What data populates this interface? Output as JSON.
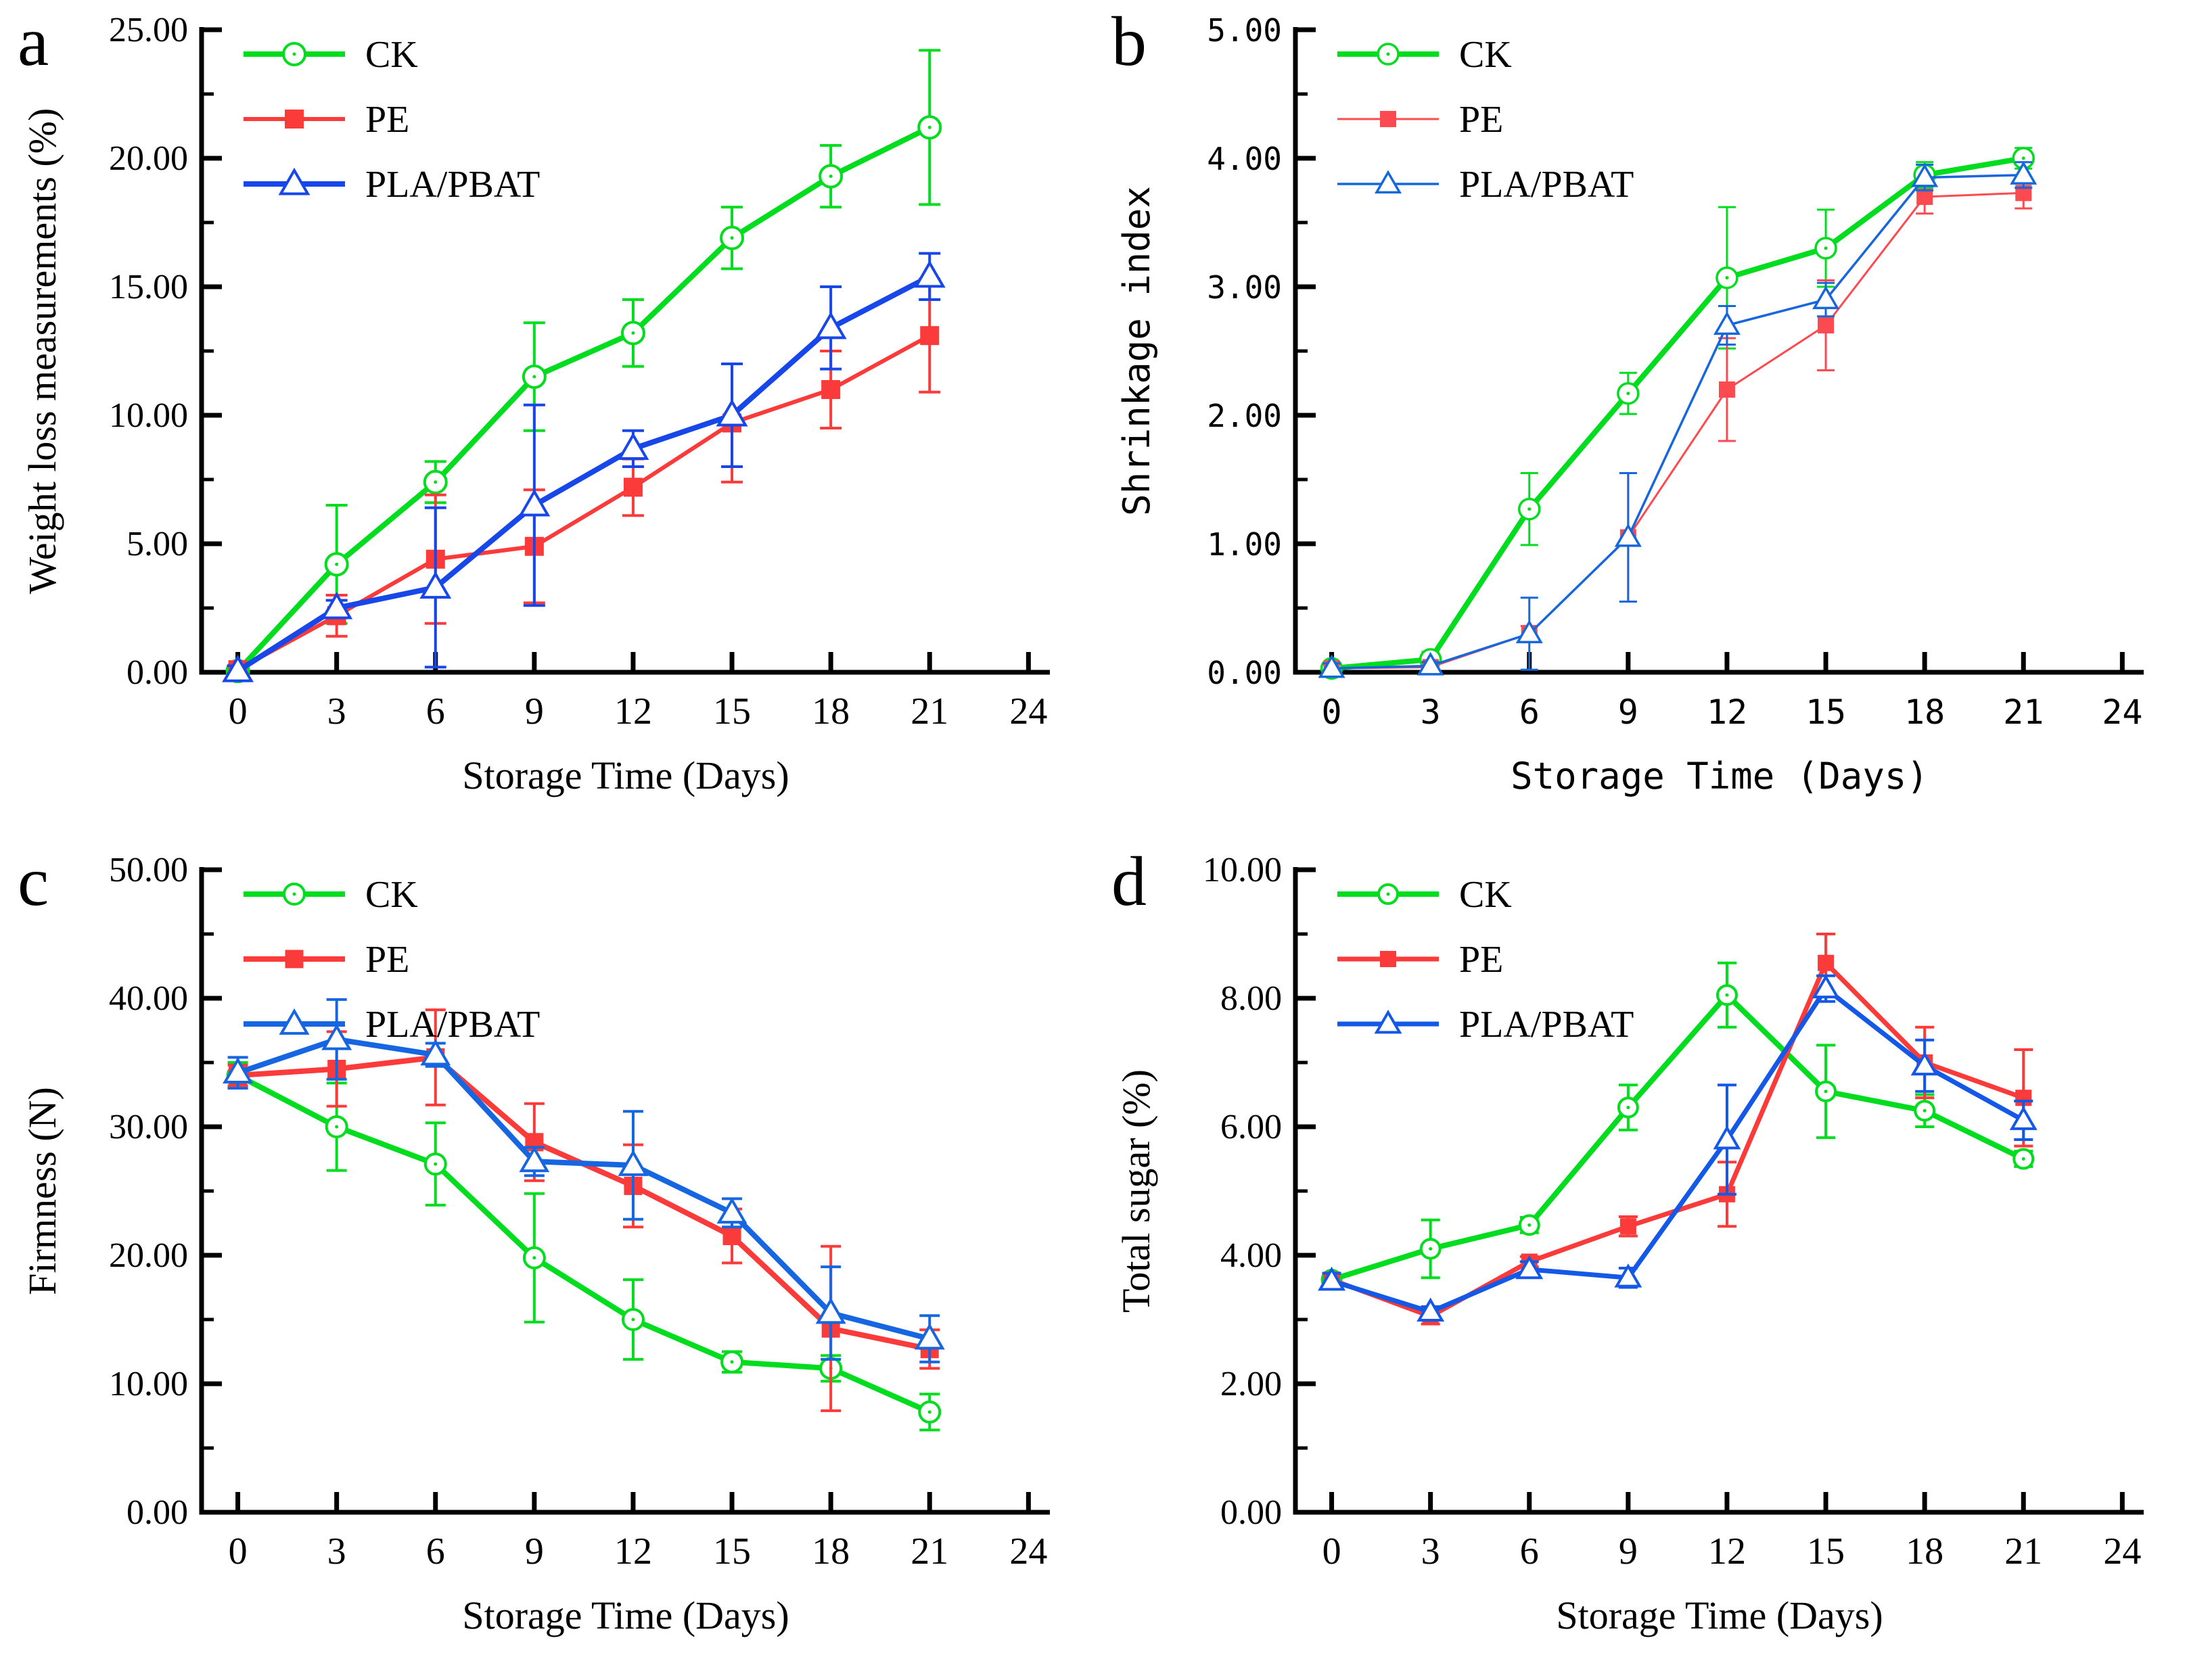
{
  "figure": {
    "background": "#ffffff",
    "legend_labels": [
      "CK",
      "PE",
      "PLA/PBAT"
    ],
    "series_colors": {
      "ck_green": "#00DC1E",
      "pe_red": "#FB3A3A",
      "pla_blue": "#1747E8"
    }
  },
  "chart_data": [
    {
      "panel_label": "a",
      "type": "line",
      "title": "",
      "xlabel": "Storage Time (Days)",
      "ylabel": "Weight loss measurements (%)",
      "font": "serif",
      "x": [
        0,
        3,
        6,
        9,
        12,
        15,
        18,
        21
      ],
      "xticks": [
        0,
        3,
        6,
        9,
        12,
        15,
        18,
        21,
        24
      ],
      "xlim": [
        -1.1,
        24.65
      ],
      "ylim": [
        0,
        25
      ],
      "yticks": [
        0,
        5,
        10,
        15,
        20,
        25
      ],
      "grid": false,
      "legend_position": "top-left",
      "err_width": 4,
      "err_cap": 16,
      "marker_stroke": 4,
      "series": [
        {
          "name": "CK",
          "color": "#00DC1E",
          "marker": "circle-open",
          "marker_size": 16,
          "line_width": 8,
          "values": [
            0.05,
            4.2,
            7.4,
            11.5,
            13.2,
            16.9,
            19.3,
            21.2
          ],
          "errors": [
            0.1,
            2.3,
            0.8,
            2.1,
            1.3,
            1.2,
            1.2,
            3.0
          ]
        },
        {
          "name": "PE",
          "color": "#FB3A3A",
          "marker": "square-filled",
          "marker_size": 28,
          "line_width": 6,
          "values": [
            0.1,
            2.2,
            4.4,
            4.9,
            7.2,
            9.7,
            11.0,
            13.1
          ],
          "errors": [
            0.15,
            0.8,
            2.5,
            2.2,
            1.1,
            2.3,
            1.5,
            2.2
          ]
        },
        {
          "name": "PLA/PBAT",
          "color": "#1747E8",
          "marker": "triangle-open",
          "marker_size": 40,
          "line_width": 8,
          "values": [
            0.05,
            2.5,
            3.3,
            6.5,
            8.7,
            10.0,
            13.4,
            15.4
          ],
          "errors": [
            0.2,
            0.3,
            3.1,
            3.9,
            0.7,
            2.0,
            1.6,
            0.9
          ]
        }
      ]
    },
    {
      "panel_label": "b",
      "type": "line",
      "title": "",
      "xlabel": "Storage Time (Days)",
      "ylabel": "Shrinkage index",
      "font": "mono",
      "x": [
        0,
        3,
        6,
        9,
        12,
        15,
        18,
        21
      ],
      "xticks": [
        0,
        3,
        6,
        9,
        12,
        15,
        18,
        21,
        24
      ],
      "xlim": [
        -1.1,
        24.65
      ],
      "ylim": [
        0,
        5
      ],
      "yticks": [
        0,
        1,
        2,
        3,
        4,
        5
      ],
      "grid": false,
      "legend_position": "top-left",
      "err_width": 3,
      "err_cap": 13,
      "marker_stroke": 3.5,
      "series": [
        {
          "name": "CK",
          "color": "#00DC1E",
          "marker": "circle-open",
          "marker_size": 15,
          "line_width": 8,
          "values": [
            0.03,
            0.1,
            1.27,
            2.17,
            3.07,
            3.3,
            3.87,
            4.0
          ],
          "errors": [
            0.03,
            0.06,
            0.28,
            0.16,
            0.55,
            0.3,
            0.1,
            0.08
          ]
        },
        {
          "name": "PE",
          "color": "#FB4A50",
          "marker": "square-filled",
          "marker_size": 24,
          "line_width": 3,
          "values": [
            0.03,
            0.04,
            0.3,
            1.05,
            2.2,
            2.7,
            3.7,
            3.73
          ],
          "errors": [
            0.03,
            0.03,
            0.06,
            0.5,
            0.4,
            0.35,
            0.13,
            0.12
          ]
        },
        {
          "name": "PLA/PBAT",
          "color": "#1767DC",
          "marker": "triangle-open",
          "marker_size": 34,
          "line_width": 3.5,
          "values": [
            0.03,
            0.05,
            0.3,
            1.05,
            2.7,
            2.9,
            3.85,
            3.87
          ],
          "errors": [
            0.04,
            0.03,
            0.28,
            0.5,
            0.15,
            0.13,
            0.1,
            0.1
          ]
        }
      ]
    },
    {
      "panel_label": "c",
      "type": "line",
      "title": "",
      "xlabel": "Storage Time (Days)",
      "ylabel": "Firmness (N)",
      "font": "serif",
      "x": [
        0,
        3,
        6,
        9,
        12,
        15,
        18,
        21
      ],
      "xticks": [
        0,
        3,
        6,
        9,
        12,
        15,
        18,
        21,
        24
      ],
      "xlim": [
        -1.1,
        24.65
      ],
      "ylim": [
        0,
        50
      ],
      "yticks": [
        0,
        10,
        20,
        30,
        40,
        50
      ],
      "grid": false,
      "legend_position": "top-left",
      "err_width": 4,
      "err_cap": 15,
      "marker_stroke": 4,
      "series": [
        {
          "name": "CK",
          "color": "#00DC1E",
          "marker": "circle-open",
          "marker_size": 15,
          "line_width": 8,
          "values": [
            34.0,
            30.0,
            27.1,
            19.8,
            15.0,
            11.7,
            11.2,
            7.8
          ],
          "errors": [
            1.0,
            3.4,
            3.2,
            5.0,
            3.1,
            0.8,
            1.0,
            1.4
          ]
        },
        {
          "name": "PE",
          "color": "#FB3A3A",
          "marker": "square-filled",
          "marker_size": 27,
          "line_width": 8,
          "values": [
            34.0,
            34.5,
            35.4,
            28.8,
            25.4,
            21.5,
            14.3,
            12.7
          ],
          "errors": [
            0.8,
            2.9,
            3.7,
            3.0,
            3.2,
            2.1,
            6.4,
            1.5
          ]
        },
        {
          "name": "PLA/PBAT",
          "color": "#1566E0",
          "marker": "triangle-open",
          "marker_size": 38,
          "line_width": 8,
          "values": [
            34.2,
            36.8,
            35.6,
            27.3,
            27.0,
            23.3,
            15.5,
            13.5
          ],
          "errors": [
            1.2,
            3.1,
            0.9,
            1.1,
            4.2,
            1.1,
            3.6,
            1.8
          ]
        }
      ]
    },
    {
      "panel_label": "d",
      "type": "line",
      "title": "",
      "xlabel": "Storage Time (Days)",
      "ylabel": "Total sugar (%)",
      "font": "serif",
      "x": [
        0,
        3,
        6,
        9,
        12,
        15,
        18,
        21
      ],
      "xticks": [
        0,
        3,
        6,
        9,
        12,
        15,
        18,
        21,
        24
      ],
      "xlim": [
        -1.1,
        24.65
      ],
      "ylim": [
        0,
        10
      ],
      "yticks": [
        0,
        2,
        4,
        6,
        8,
        10
      ],
      "grid": false,
      "legend_position": "top-left",
      "err_width": 4,
      "err_cap": 14,
      "marker_stroke": 4,
      "series": [
        {
          "name": "CK",
          "color": "#00DC1E",
          "marker": "circle-open",
          "marker_size": 14,
          "line_width": 8,
          "values": [
            3.62,
            4.1,
            4.47,
            6.3,
            8.05,
            6.55,
            6.25,
            5.5
          ],
          "errors": [
            0.08,
            0.45,
            0.12,
            0.35,
            0.5,
            0.72,
            0.25,
            0.12
          ]
        },
        {
          "name": "PE",
          "color": "#FB3A3A",
          "marker": "square-filled",
          "marker_size": 24,
          "line_width": 7,
          "values": [
            3.62,
            3.05,
            3.9,
            4.45,
            4.95,
            8.55,
            7.0,
            6.45
          ],
          "errors": [
            0.1,
            0.12,
            0.08,
            0.15,
            0.5,
            0.45,
            0.55,
            0.75
          ]
        },
        {
          "name": "PLA/PBAT",
          "color": "#1458E8",
          "marker": "triangle-open",
          "marker_size": 34,
          "line_width": 7,
          "values": [
            3.6,
            3.12,
            3.78,
            3.65,
            5.8,
            8.15,
            6.95,
            6.1
          ],
          "errors": [
            0.12,
            0.08,
            0.12,
            0.15,
            0.85,
            0.2,
            0.4,
            0.3
          ]
        }
      ]
    }
  ]
}
